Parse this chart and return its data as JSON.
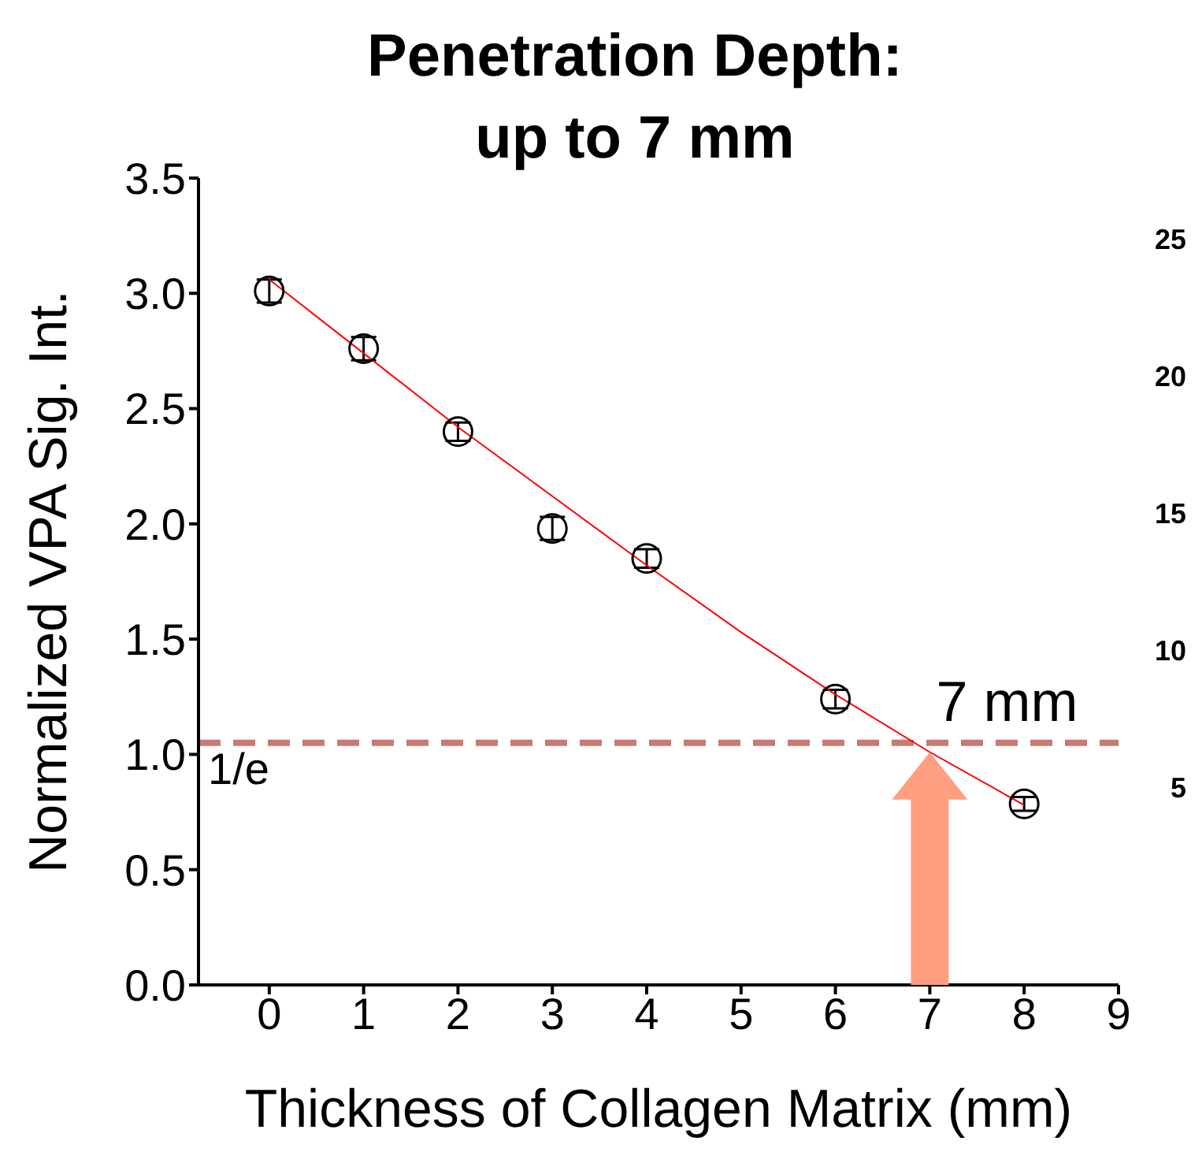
{
  "chart_data": {
    "type": "scatter",
    "title": "Penetration Depth: up to 7 mm",
    "xlabel": "Thickness of Collagen Matrix (mm)",
    "ylabel": "Normalized VPA Sig. Int.",
    "series": [
      {
        "type": "scatter",
        "x": [
          0,
          1,
          2,
          3,
          4,
          6,
          8
        ],
        "values": [
          3.01,
          2.76,
          2.4,
          1.98,
          1.85,
          1.24,
          0.785
        ],
        "errors": [
          0.05,
          0.05,
          0.04,
          0.05,
          0.04,
          0.04,
          0.03
        ],
        "color": "#000000",
        "marker": "circle"
      },
      {
        "type": "line",
        "x": [
          0,
          1,
          2,
          3,
          4,
          5,
          6,
          7,
          8
        ],
        "values": [
          3.06,
          2.74,
          2.42,
          2.12,
          1.82,
          1.53,
          1.26,
          1.01,
          0.78
        ],
        "color": "#ff0000",
        "marker": "none"
      }
    ],
    "xlim": [
      -0.75,
      9
    ],
    "xticks": [
      0,
      1,
      2,
      3,
      4,
      5,
      6,
      7,
      8,
      9
    ],
    "ylim": [
      0,
      3.5
    ],
    "yticks": [
      {
        "value": 0,
        "label": "0.0"
      },
      0.5,
      {
        "value": 1,
        "label": "1.0"
      },
      1.5,
      {
        "value": 2,
        "label": "2.0"
      },
      2.5,
      {
        "value": 3,
        "label": "3.0"
      },
      3.5
    ],
    "ref_lines": [
      {
        "axis": "y",
        "value": 1.05,
        "label": "1/e",
        "color": "#c87a72",
        "line_style": "dashed"
      }
    ],
    "annotations": [
      {
        "text": "7 mm",
        "x": 7,
        "y": 1.05
      },
      "25",
      "20",
      "15",
      "10",
      "5"
    ]
  }
}
